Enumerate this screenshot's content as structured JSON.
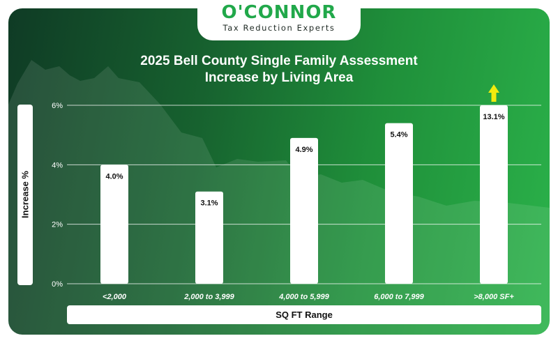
{
  "logo": {
    "name": "O'CONNOR",
    "tagline": "Tax Reduction Experts"
  },
  "colors": {
    "brand_green": "#21a84a",
    "bar": "#ffffff",
    "arrow": "#f2ea0e"
  },
  "chart_data": {
    "type": "bar",
    "title_line1": "2025 Bell County Single Family Assessment",
    "title_line2": "Increase by Living Area",
    "xlabel": "SQ FT Range",
    "ylabel": "Increase %",
    "categories": [
      "<2,000",
      "2,000 to 3,999",
      "4,000 to 5,999",
      "6,000 to 7,999",
      ">8,000 SF+"
    ],
    "values": [
      4.0,
      3.1,
      4.9,
      5.4,
      13.1
    ],
    "value_labels": [
      "4.0%",
      "3.1%",
      "4.9%",
      "5.4%",
      "13.1%"
    ],
    "ylim": [
      0,
      6
    ],
    "yticks": [
      0,
      2,
      4,
      6
    ],
    "ytick_labels": [
      "0%",
      "2%",
      "4%",
      "6%"
    ],
    "grid": true,
    "clipped_indicator": "up-arrow-icon"
  }
}
